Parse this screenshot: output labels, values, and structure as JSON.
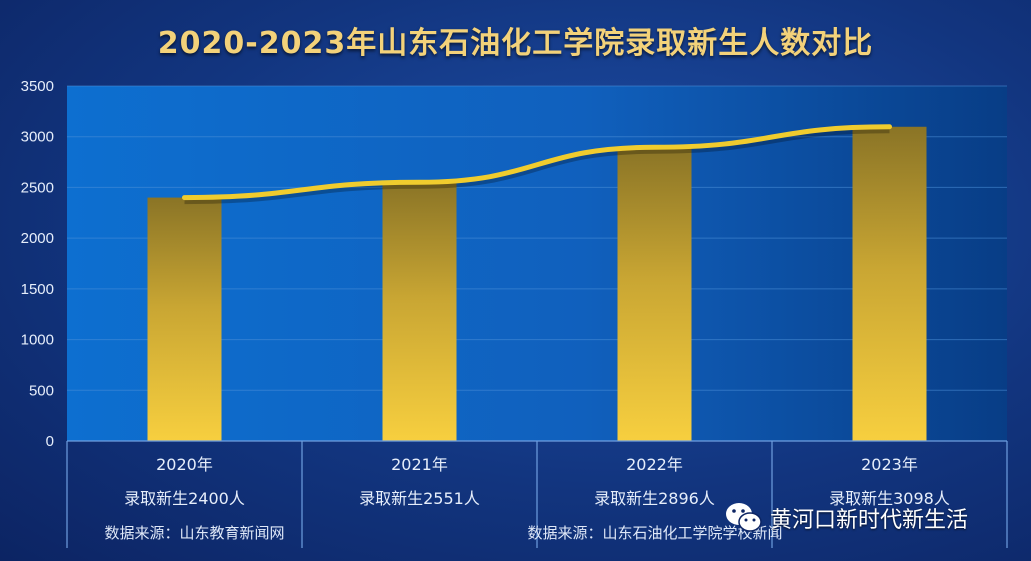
{
  "chart_data": {
    "type": "bar",
    "title": "2020-2023年山东石油化工学院录取新生人数对比",
    "categories": [
      "2020年",
      "2021年",
      "2022年",
      "2023年"
    ],
    "values": [
      2400,
      2551,
      2896,
      3098
    ],
    "value_labels": [
      "录取新生2400人",
      "录取新生2551人",
      "录取新生2896人",
      "录取新生3098人"
    ],
    "line_overlay": true,
    "ylim": [
      0,
      3500
    ],
    "yticks": [
      0,
      500,
      1000,
      1500,
      2000,
      2500,
      3000,
      3500
    ],
    "grid": true,
    "colors": {
      "bar_top": "#8a7426",
      "bar_bottom": "#f5cc3d",
      "line": "#f0cc2e",
      "plot_bg": "#1265c4",
      "title": "#f3d27a"
    }
  },
  "sources": {
    "left": "数据来源：山东教育新闻网",
    "right": "数据来源：山东石油化工学院学校新闻"
  },
  "watermark": {
    "text": "黄河口新时代新生活",
    "icon": "wechat-icon"
  }
}
